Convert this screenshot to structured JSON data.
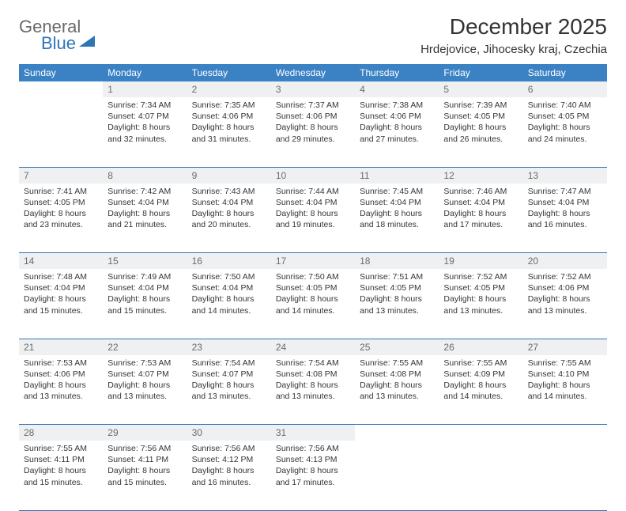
{
  "brand": {
    "line1": "General",
    "line2": "Blue"
  },
  "title": "December 2025",
  "location": "Hrdejovice, Jihocesky kraj, Czechia",
  "colors": {
    "header_bg": "#3a82c4",
    "header_text": "#ffffff",
    "daynum_bg": "#eef0f2",
    "daynum_text": "#6b6b6b",
    "border": "#2f74b5",
    "body_text": "#353535",
    "brand_gray": "#6a6a6a",
    "brand_blue": "#2f74b5"
  },
  "day_headers": [
    "Sunday",
    "Monday",
    "Tuesday",
    "Wednesday",
    "Thursday",
    "Friday",
    "Saturday"
  ],
  "weeks": [
    [
      null,
      {
        "n": "1",
        "sunrise": "7:34 AM",
        "sunset": "4:07 PM",
        "daylight": "8 hours and 32 minutes."
      },
      {
        "n": "2",
        "sunrise": "7:35 AM",
        "sunset": "4:06 PM",
        "daylight": "8 hours and 31 minutes."
      },
      {
        "n": "3",
        "sunrise": "7:37 AM",
        "sunset": "4:06 PM",
        "daylight": "8 hours and 29 minutes."
      },
      {
        "n": "4",
        "sunrise": "7:38 AM",
        "sunset": "4:06 PM",
        "daylight": "8 hours and 27 minutes."
      },
      {
        "n": "5",
        "sunrise": "7:39 AM",
        "sunset": "4:05 PM",
        "daylight": "8 hours and 26 minutes."
      },
      {
        "n": "6",
        "sunrise": "7:40 AM",
        "sunset": "4:05 PM",
        "daylight": "8 hours and 24 minutes."
      }
    ],
    [
      {
        "n": "7",
        "sunrise": "7:41 AM",
        "sunset": "4:05 PM",
        "daylight": "8 hours and 23 minutes."
      },
      {
        "n": "8",
        "sunrise": "7:42 AM",
        "sunset": "4:04 PM",
        "daylight": "8 hours and 21 minutes."
      },
      {
        "n": "9",
        "sunrise": "7:43 AM",
        "sunset": "4:04 PM",
        "daylight": "8 hours and 20 minutes."
      },
      {
        "n": "10",
        "sunrise": "7:44 AM",
        "sunset": "4:04 PM",
        "daylight": "8 hours and 19 minutes."
      },
      {
        "n": "11",
        "sunrise": "7:45 AM",
        "sunset": "4:04 PM",
        "daylight": "8 hours and 18 minutes."
      },
      {
        "n": "12",
        "sunrise": "7:46 AM",
        "sunset": "4:04 PM",
        "daylight": "8 hours and 17 minutes."
      },
      {
        "n": "13",
        "sunrise": "7:47 AM",
        "sunset": "4:04 PM",
        "daylight": "8 hours and 16 minutes."
      }
    ],
    [
      {
        "n": "14",
        "sunrise": "7:48 AM",
        "sunset": "4:04 PM",
        "daylight": "8 hours and 15 minutes."
      },
      {
        "n": "15",
        "sunrise": "7:49 AM",
        "sunset": "4:04 PM",
        "daylight": "8 hours and 15 minutes."
      },
      {
        "n": "16",
        "sunrise": "7:50 AM",
        "sunset": "4:04 PM",
        "daylight": "8 hours and 14 minutes."
      },
      {
        "n": "17",
        "sunrise": "7:50 AM",
        "sunset": "4:05 PM",
        "daylight": "8 hours and 14 minutes."
      },
      {
        "n": "18",
        "sunrise": "7:51 AM",
        "sunset": "4:05 PM",
        "daylight": "8 hours and 13 minutes."
      },
      {
        "n": "19",
        "sunrise": "7:52 AM",
        "sunset": "4:05 PM",
        "daylight": "8 hours and 13 minutes."
      },
      {
        "n": "20",
        "sunrise": "7:52 AM",
        "sunset": "4:06 PM",
        "daylight": "8 hours and 13 minutes."
      }
    ],
    [
      {
        "n": "21",
        "sunrise": "7:53 AM",
        "sunset": "4:06 PM",
        "daylight": "8 hours and 13 minutes."
      },
      {
        "n": "22",
        "sunrise": "7:53 AM",
        "sunset": "4:07 PM",
        "daylight": "8 hours and 13 minutes."
      },
      {
        "n": "23",
        "sunrise": "7:54 AM",
        "sunset": "4:07 PM",
        "daylight": "8 hours and 13 minutes."
      },
      {
        "n": "24",
        "sunrise": "7:54 AM",
        "sunset": "4:08 PM",
        "daylight": "8 hours and 13 minutes."
      },
      {
        "n": "25",
        "sunrise": "7:55 AM",
        "sunset": "4:08 PM",
        "daylight": "8 hours and 13 minutes."
      },
      {
        "n": "26",
        "sunrise": "7:55 AM",
        "sunset": "4:09 PM",
        "daylight": "8 hours and 14 minutes."
      },
      {
        "n": "27",
        "sunrise": "7:55 AM",
        "sunset": "4:10 PM",
        "daylight": "8 hours and 14 minutes."
      }
    ],
    [
      {
        "n": "28",
        "sunrise": "7:55 AM",
        "sunset": "4:11 PM",
        "daylight": "8 hours and 15 minutes."
      },
      {
        "n": "29",
        "sunrise": "7:56 AM",
        "sunset": "4:11 PM",
        "daylight": "8 hours and 15 minutes."
      },
      {
        "n": "30",
        "sunrise": "7:56 AM",
        "sunset": "4:12 PM",
        "daylight": "8 hours and 16 minutes."
      },
      {
        "n": "31",
        "sunrise": "7:56 AM",
        "sunset": "4:13 PM",
        "daylight": "8 hours and 17 minutes."
      },
      null,
      null,
      null
    ]
  ],
  "labels": {
    "sunrise": "Sunrise:",
    "sunset": "Sunset:",
    "daylight": "Daylight:"
  }
}
